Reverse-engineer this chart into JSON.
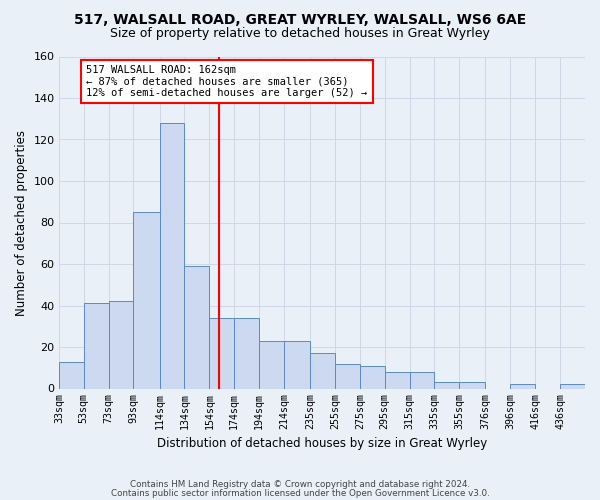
{
  "title1": "517, WALSALL ROAD, GREAT WYRLEY, WALSALL, WS6 6AE",
  "title2": "Size of property relative to detached houses in Great Wyrley",
  "xlabel": "Distribution of detached houses by size in Great Wyrley",
  "ylabel": "Number of detached properties",
  "categories": [
    "33sqm",
    "53sqm",
    "73sqm",
    "93sqm",
    "114sqm",
    "134sqm",
    "154sqm",
    "174sqm",
    "194sqm",
    "214sqm",
    "235sqm",
    "255sqm",
    "275sqm",
    "295sqm",
    "315sqm",
    "335sqm",
    "355sqm",
    "376sqm",
    "396sqm",
    "416sqm",
    "436sqm"
  ],
  "bar_edges": [
    33,
    53,
    73,
    93,
    114,
    134,
    154,
    174,
    194,
    214,
    235,
    255,
    275,
    295,
    315,
    335,
    355,
    376,
    396,
    416,
    436,
    456
  ],
  "bar_heights": [
    13,
    41,
    42,
    85,
    128,
    59,
    34,
    34,
    23,
    23,
    17,
    12,
    11,
    8,
    8,
    3,
    3,
    0,
    2,
    0,
    2
  ],
  "bar_color": "#ccd9f0",
  "bar_edgecolor": "#5a8ac6",
  "grid_color": "#d0d8e8",
  "vline_x": 162,
  "vline_color": "red",
  "annotation_text": "517 WALSALL ROAD: 162sqm\n← 87% of detached houses are smaller (365)\n12% of semi-detached houses are larger (52) →",
  "annotation_box_edgecolor": "red",
  "annotation_box_facecolor": "white",
  "ylim": [
    0,
    160
  ],
  "yticks": [
    0,
    20,
    40,
    60,
    80,
    100,
    120,
    140,
    160
  ],
  "footer1": "Contains HM Land Registry data © Crown copyright and database right 2024.",
  "footer2": "Contains public sector information licensed under the Open Government Licence v3.0.",
  "bg_color": "#eaf0f8"
}
